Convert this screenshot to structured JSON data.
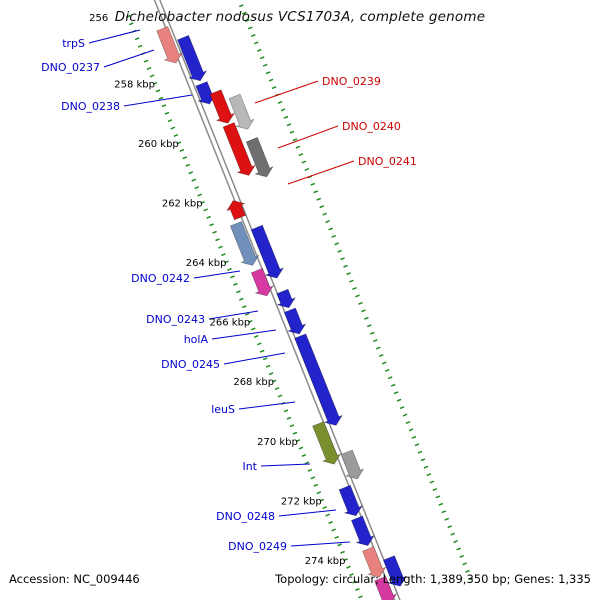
{
  "title": "Dichelobacter nodosus VCS1703A, complete genome",
  "status_bar": {
    "accession": "Accession: NC_009446",
    "topology": "Topology: circular; Length: 1,389,350 bp; Genes: 1,335"
  },
  "map": {
    "ruler": {
      "unit": "kbp",
      "tick_color": "#228b22",
      "ticks": [
        {
          "label": "256",
          "kbp": 256
        },
        {
          "label": "258 kbp",
          "kbp": 258
        },
        {
          "label": "260 kbp",
          "kbp": 260
        },
        {
          "label": "262 kbp",
          "kbp": 262
        },
        {
          "label": "264 kbp",
          "kbp": 264
        },
        {
          "label": "266 kbp",
          "kbp": 266
        },
        {
          "label": "268 kbp",
          "kbp": 268
        },
        {
          "label": "270 kbp",
          "kbp": 270
        },
        {
          "label": "272 kbp",
          "kbp": 272
        },
        {
          "label": "274 kbp",
          "kbp": 274
        }
      ]
    },
    "backbone_color": "#8a8a8a",
    "label_colors": {
      "left": "#0000cc",
      "right": "#cc0000"
    },
    "genes": [
      {
        "id": "trpS",
        "label": "trpS",
        "label_side": "left",
        "start_kbp": 256.05,
        "end_kbp": 257.2,
        "strand": "forward",
        "color": "#e8827e"
      },
      {
        "id": "DNO_0237",
        "label": "DNO_0237",
        "label_side": "left",
        "start_kbp": 256.55,
        "end_kbp": 258.0,
        "strand": "forward",
        "color": "#2323cc"
      },
      {
        "id": "DNO_0238",
        "label": "DNO_0238",
        "label_side": "left",
        "start_kbp": 258.1,
        "end_kbp": 258.78,
        "strand": "forward",
        "color": "#2323cc"
      },
      {
        "id": "DNO_0239",
        "label": "DNO_0239",
        "label_side": "right",
        "start_kbp": 258.5,
        "end_kbp": 259.55,
        "strand": "forward",
        "color": "#dd1111"
      },
      {
        "id": "gene-a",
        "label": "",
        "label_side": "",
        "start_kbp": 258.85,
        "end_kbp": 259.95,
        "strand": "forward",
        "color": "#b8b8b8"
      },
      {
        "id": "DNO_0240",
        "label": "DNO_0240",
        "label_side": "right",
        "start_kbp": 259.6,
        "end_kbp": 261.3,
        "strand": "forward",
        "color": "#dd1111"
      },
      {
        "id": "DNO_0241",
        "label": "DNO_0241",
        "label_side": "right",
        "start_kbp": 260.3,
        "end_kbp": 261.55,
        "strand": "forward",
        "color": "#6f6f6f"
      },
      {
        "id": "gene-b",
        "label": "",
        "label_side": "",
        "start_kbp": 261.85,
        "end_kbp": 262.42,
        "strand": "reverse",
        "color": "#dd1111"
      },
      {
        "id": "gene-c",
        "label": "",
        "label_side": "",
        "start_kbp": 262.55,
        "end_kbp": 263.95,
        "strand": "forward",
        "color": "#7090bb"
      },
      {
        "id": "DNO_0242",
        "label": "DNO_0242",
        "label_side": "left",
        "start_kbp": 262.9,
        "end_kbp": 264.6,
        "strand": "forward",
        "color": "#2323cc"
      },
      {
        "id": "DNO_0243",
        "label": "DNO_0243",
        "label_side": "left",
        "start_kbp": 264.15,
        "end_kbp": 265.0,
        "strand": "forward",
        "color": "#d6399f"
      },
      {
        "id": "holA",
        "label": "holA",
        "label_side": "left",
        "start_kbp": 265.05,
        "end_kbp": 265.6,
        "strand": "forward",
        "color": "#2323cc"
      },
      {
        "id": "DNO_0245",
        "label": "DNO_0245",
        "label_side": "left",
        "start_kbp": 265.68,
        "end_kbp": 266.48,
        "strand": "forward",
        "color": "#2323cc"
      },
      {
        "id": "leuS",
        "label": "leuS",
        "label_side": "left",
        "start_kbp": 266.55,
        "end_kbp": 269.55,
        "strand": "forward",
        "color": "#2323cc"
      },
      {
        "id": "Int",
        "label": "Int",
        "label_side": "left",
        "start_kbp": 269.3,
        "end_kbp": 270.65,
        "strand": "forward",
        "color": "#7a8f2e"
      },
      {
        "id": "gene-d",
        "label": "",
        "label_side": "",
        "start_kbp": 270.45,
        "end_kbp": 271.35,
        "strand": "forward",
        "color": "#9b9b9b"
      },
      {
        "id": "DNO_0248",
        "label": "DNO_0248",
        "label_side": "left",
        "start_kbp": 271.45,
        "end_kbp": 272.4,
        "strand": "forward",
        "color": "#2323cc"
      },
      {
        "id": "DNO_0249",
        "label": "DNO_0249",
        "label_side": "left",
        "start_kbp": 272.48,
        "end_kbp": 273.4,
        "strand": "forward",
        "color": "#2323cc"
      },
      {
        "id": "gene-e",
        "label": "",
        "label_side": "",
        "start_kbp": 273.5,
        "end_kbp": 274.45,
        "strand": "forward",
        "color": "#e8827e"
      },
      {
        "id": "gene-f",
        "label": "",
        "label_side": "",
        "start_kbp": 274.0,
        "end_kbp": 274.95,
        "strand": "forward",
        "color": "#2323cc"
      },
      {
        "id": "gene-g",
        "label": "",
        "label_side": "",
        "start_kbp": 274.5,
        "end_kbp": 275.35,
        "strand": "forward",
        "color": "#d6399f"
      }
    ]
  }
}
